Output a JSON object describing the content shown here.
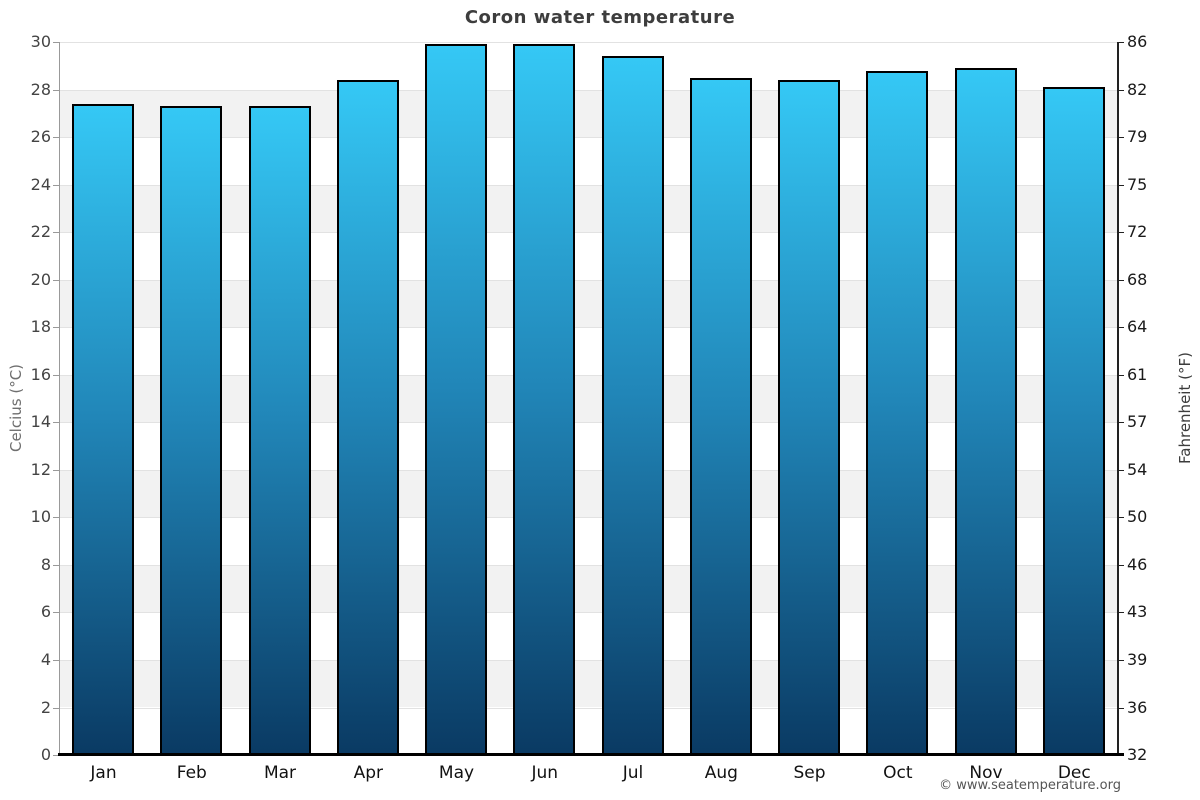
{
  "page": {
    "title": "Coron water temperature",
    "footer": "© www.seatemperature.org"
  },
  "chart_data": {
    "type": "bar",
    "title": "Coron water temperature",
    "categories": [
      "Jan",
      "Feb",
      "Mar",
      "Apr",
      "May",
      "Jun",
      "Jul",
      "Aug",
      "Sep",
      "Oct",
      "Nov",
      "Dec"
    ],
    "series": [
      {
        "name": "Water temperature",
        "unit": "°C",
        "values": [
          27.4,
          27.3,
          27.3,
          28.4,
          29.9,
          29.9,
          29.4,
          28.5,
          28.4,
          28.8,
          28.9,
          28.1
        ]
      }
    ],
    "ylabel_left": "Celcius (°C)",
    "ylabel_right": "Fahrenheit (°F)",
    "xlabel": "",
    "ylim_celsius": [
      0,
      30
    ],
    "ytick_step_celsius": 2,
    "yticks_celsius": [
      "0",
      "2",
      "4",
      "6",
      "8",
      "10",
      "12",
      "14",
      "16",
      "18",
      "20",
      "22",
      "24",
      "26",
      "28",
      "30"
    ],
    "yticks_fahrenheit": [
      "32",
      "36",
      "39",
      "43",
      "46",
      "50",
      "54",
      "57",
      "61",
      "64",
      "68",
      "72",
      "75",
      "79",
      "82",
      "86"
    ],
    "grid": "horizontal alternating bands, light gridlines every 2°C",
    "legend": "none",
    "colors": {
      "bar_gradient_top": "#35c8f5",
      "bar_gradient_mid": "#2186b8",
      "bar_gradient_bottom": "#0a3a63",
      "bar_border": "#000000",
      "band_gray": "#f2f2f2",
      "band_white": "#ffffff",
      "gridline": "#e2e2e2",
      "axis_left": "#999999",
      "axis_right": "#222222",
      "axis_bottom": "#000000"
    }
  }
}
